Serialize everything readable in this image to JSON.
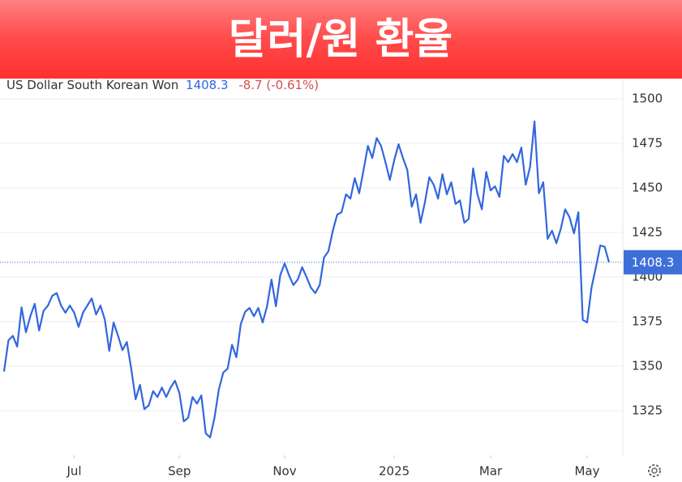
{
  "chart_data": {
    "type": "line",
    "title": "달러/원 환율",
    "series": [
      {
        "name": "US Dollar South Korean Won",
        "color": "#3366dd",
        "values": [
          1347,
          1364.5,
          1367,
          1361,
          1383,
          1369,
          1378,
          1385,
          1370,
          1381,
          1384,
          1389.5,
          1391,
          1384,
          1380,
          1384,
          1380,
          1372,
          1380,
          1384,
          1388,
          1379,
          1384,
          1376,
          1358.6,
          1374.5,
          1367,
          1359,
          1363.6,
          1348.6,
          1331.4,
          1339.5,
          1325.9,
          1328,
          1336,
          1332.7,
          1338,
          1332.7,
          1338,
          1341.8,
          1335,
          1319,
          1321,
          1332.7,
          1329,
          1333.6,
          1312.3,
          1310,
          1321,
          1337,
          1346.4,
          1348.6,
          1362,
          1355,
          1373.6,
          1380.5,
          1382.7,
          1378,
          1382.7,
          1374.5,
          1383.6,
          1398.6,
          1383.6,
          1401,
          1407.7,
          1401,
          1395.5,
          1398.6,
          1405.5,
          1400,
          1394,
          1391,
          1395.5,
          1411,
          1414.5,
          1426,
          1435,
          1436.4,
          1446.4,
          1444,
          1455.5,
          1447,
          1460,
          1473.6,
          1466.8,
          1478,
          1473.6,
          1464.5,
          1454.5,
          1465.5,
          1474.5,
          1466.8,
          1460,
          1439.5,
          1446.4,
          1430.5,
          1442,
          1456,
          1451.8,
          1444,
          1457.7,
          1446.4,
          1453.2,
          1441,
          1443,
          1430.5,
          1432.7,
          1461,
          1446.4,
          1438,
          1459,
          1448.6,
          1450.9,
          1445,
          1468,
          1464.5,
          1469,
          1464.5,
          1472.7,
          1451.8,
          1462,
          1487.3,
          1447,
          1453.2,
          1421.4,
          1426,
          1419,
          1427,
          1438,
          1433.6,
          1424.5,
          1436.4,
          1376,
          1374.5,
          1394,
          1405.5,
          1417.7,
          1417,
          1408.3
        ]
      }
    ],
    "current": 1408.3,
    "change": "-8.7 (-0.61%)",
    "ylim": [
      1300,
      1510
    ],
    "yticks": [
      1325,
      1350,
      1375,
      1400,
      1425,
      1450,
      1475,
      1500
    ],
    "xticks": [
      {
        "value": 16,
        "label": "Jul"
      },
      {
        "value": 40,
        "label": "Sep"
      },
      {
        "value": 64,
        "label": "Nov"
      },
      {
        "value": 89,
        "label": "2025"
      },
      {
        "value": 111,
        "label": "Mar"
      },
      {
        "value": 133,
        "label": "May"
      }
    ],
    "grid": true
  }
}
